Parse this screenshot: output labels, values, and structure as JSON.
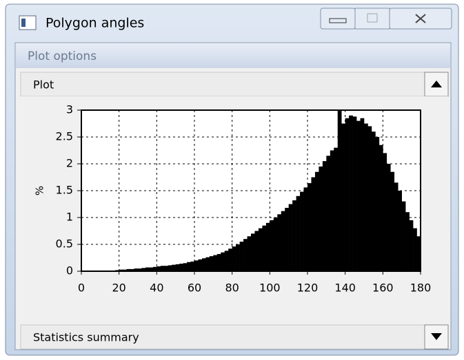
{
  "window": {
    "title": "Polygon angles"
  },
  "panel": {
    "title": "Plot options",
    "plot_section": "Plot",
    "stats_section": "Statistics summary"
  },
  "chart_data": {
    "type": "histogram",
    "ylabel": "%",
    "bins": [
      0,
      2,
      4,
      6,
      8,
      10,
      12,
      14,
      16,
      18,
      20,
      22,
      24,
      26,
      28,
      30,
      32,
      34,
      36,
      38,
      40,
      42,
      44,
      46,
      48,
      50,
      52,
      54,
      56,
      58,
      60,
      62,
      64,
      66,
      68,
      70,
      72,
      74,
      76,
      78,
      80,
      82,
      84,
      86,
      88,
      90,
      92,
      94,
      96,
      98,
      100,
      102,
      104,
      106,
      108,
      110,
      112,
      114,
      116,
      118,
      120,
      122,
      124,
      126,
      128,
      130,
      132,
      134,
      136,
      138,
      140,
      142,
      144,
      146,
      148,
      150,
      152,
      154,
      156,
      158,
      160,
      162,
      164,
      166,
      168,
      170,
      172,
      174,
      176,
      178,
      180
    ],
    "values": [
      0,
      0,
      0,
      0,
      0,
      0,
      0,
      0.01,
      0.01,
      0.02,
      0.03,
      0.03,
      0.04,
      0.04,
      0.05,
      0.05,
      0.06,
      0.07,
      0.07,
      0.08,
      0.09,
      0.1,
      0.1,
      0.11,
      0.12,
      0.13,
      0.14,
      0.15,
      0.17,
      0.18,
      0.2,
      0.22,
      0.24,
      0.26,
      0.28,
      0.3,
      0.32,
      0.35,
      0.38,
      0.42,
      0.46,
      0.5,
      0.55,
      0.6,
      0.65,
      0.7,
      0.75,
      0.8,
      0.85,
      0.9,
      0.95,
      1.0,
      1.06,
      1.12,
      1.18,
      1.25,
      1.32,
      1.4,
      1.48,
      1.56,
      1.64,
      1.75,
      1.85,
      1.95,
      2.05,
      2.15,
      2.25,
      2.3,
      3.0,
      2.75,
      2.85,
      2.9,
      2.88,
      2.8,
      2.85,
      2.75,
      2.7,
      2.6,
      2.5,
      2.35,
      2.2,
      2.0,
      1.85,
      1.65,
      1.5,
      1.3,
      1.1,
      0.95,
      0.8,
      0.65
    ],
    "color": "#000000",
    "xlim": [
      0,
      180
    ],
    "xticks": [
      0,
      20,
      40,
      60,
      80,
      100,
      120,
      140,
      160,
      180
    ],
    "ylim": [
      0,
      3
    ],
    "yticks": [
      0,
      0.5,
      1,
      1.5,
      2,
      2.5,
      3
    ],
    "grid": true
  }
}
